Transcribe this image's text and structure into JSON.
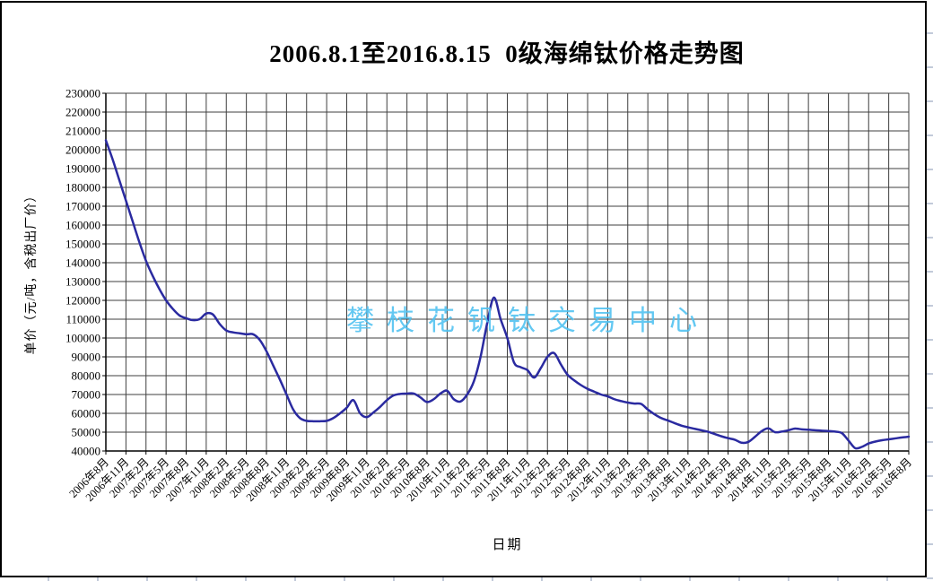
{
  "header": {
    "title": "2006.8.1至2016.8.15  0级海绵钛价格走势图"
  },
  "watermark": {
    "text": "攀枝花钒钛交易中心",
    "color": "#4ec1f1"
  },
  "chart_data": {
    "type": "line",
    "title": "2006.8.1至2016.8.15  0级海绵钛价格走势图",
    "xlabel": "日期",
    "ylabel": "单价（元/吨，含税出厂价）",
    "ylim": [
      40000,
      230000
    ],
    "ytick_step": 10000,
    "grid": true,
    "legend": false,
    "x_interval": "monthly",
    "x_range": [
      "2006年8月",
      "2016年8月"
    ],
    "x_tick_labels": [
      "2006年8月",
      "2006年11月",
      "2007年2月",
      "2007年5月",
      "2007年8月",
      "2007年11月",
      "2008年2月",
      "2008年5月",
      "2008年8月",
      "2008年11月",
      "2009年2月",
      "2009年5月",
      "2009年8月",
      "2009年11月",
      "2010年2月",
      "2010年5月",
      "2010年8月",
      "2010年11月",
      "2011年2月",
      "2011年5月",
      "2011年8月",
      "2011年11月",
      "2012年2月",
      "2012年5月",
      "2012年8月",
      "2012年11月",
      "2013年2月",
      "2013年5月",
      "2013年8月",
      "2013年11月",
      "2014年2月",
      "2014年5月",
      "2014年8月",
      "2014年11月",
      "2015年2月",
      "2015年5月",
      "2015年8月",
      "2015年11月",
      "2016年2月",
      "2016年5月",
      "2016年8月"
    ],
    "series": [
      {
        "color": "#2a2aa0",
        "values": [
          205000,
          195000,
          184000,
          173000,
          162000,
          151000,
          141000,
          133000,
          126000,
          120000,
          115500,
          112000,
          110500,
          109500,
          110000,
          113000,
          112500,
          107500,
          104000,
          103000,
          102500,
          102000,
          102000,
          99000,
          93000,
          85500,
          78000,
          70000,
          62000,
          57500,
          56000,
          55800,
          55800,
          56000,
          57500,
          60000,
          63000,
          67000,
          60000,
          58000,
          60500,
          63500,
          67000,
          69500,
          70300,
          70500,
          70500,
          68500,
          66000,
          67500,
          70500,
          72000,
          67500,
          66300,
          70000,
          77000,
          90000,
          108000,
          121500,
          110000,
          100000,
          87000,
          84500,
          83000,
          79000,
          84000,
          90000,
          92000,
          86000,
          80500,
          77500,
          75000,
          73000,
          71500,
          70000,
          69000,
          67500,
          66500,
          65700,
          65200,
          65000,
          62000,
          59500,
          57500,
          56200,
          54800,
          53500,
          52600,
          51800,
          51000,
          50200,
          49000,
          47800,
          46800,
          46000,
          44400,
          44800,
          47500,
          50500,
          52000,
          50000,
          50300,
          51000,
          51900,
          51500,
          51300,
          51000,
          50800,
          50600,
          50300,
          49500,
          45500,
          41500,
          42200,
          44000,
          45000,
          45700,
          46200,
          46700,
          47200,
          47600
        ]
      }
    ]
  },
  "colors": {
    "line": "#2a2aa0",
    "grid": "#3f3f3f",
    "axis": "#000000",
    "watermark": "#4ec1f1",
    "background": "#ffffff"
  }
}
